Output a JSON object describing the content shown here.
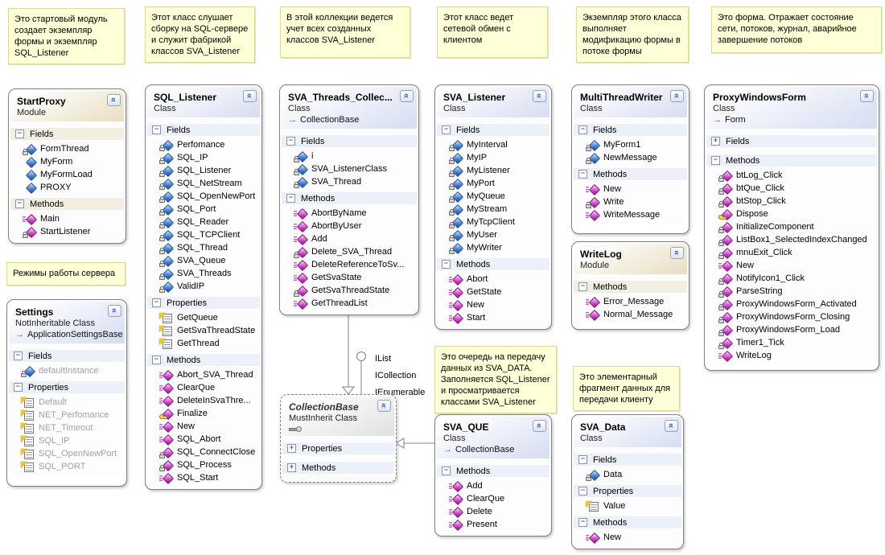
{
  "diagram": {
    "comments": [
      {
        "text": "Это стартовый модуль создает экземпляр формы и экземпляр SQL_Listener"
      },
      {
        "text": "Этот класс слушает сборку на SQL-сервере и служит фабрикой классов SVA_Listener"
      },
      {
        "text": "В этой коллекции ведется учет всех созданных классов SVA_Listener"
      },
      {
        "text": "Этот класс ведет сетевой обмен с клиентом"
      },
      {
        "text": "Экземпляр этого класса выполняет модификацию формы в потоке формы"
      },
      {
        "text": "Это форма. Отражает состояние сети, потоков, журнал, аварийное завершение потоков"
      },
      {
        "text": "Режимы работы сервера"
      },
      {
        "text": "Это очередь на передачу данных из SVA_DATA. Заполняется SQL_Listener и просматривается классами SVA_Listener"
      },
      {
        "text": "Это элементарный фрагмент данных для передачи клиенту"
      }
    ],
    "interfaces": [
      "IList",
      "ICollection",
      "IEnumerable"
    ],
    "classes": [
      {
        "id": "StartProxy",
        "title": "StartProxy",
        "kind": "Module",
        "variant": "module",
        "sections": [
          {
            "label": "Fields",
            "collapsed": false,
            "members": [
              {
                "label": "FormThread",
                "icon": "field-private"
              },
              {
                "label": "MyForm",
                "icon": "field-public"
              },
              {
                "label": "MyFormLoad",
                "icon": "field-public"
              },
              {
                "label": "PROXY",
                "icon": "field-public"
              }
            ]
          },
          {
            "label": "Methods",
            "collapsed": false,
            "members": [
              {
                "label": "Main",
                "icon": "method-public"
              },
              {
                "label": "StartListener",
                "icon": "method-private"
              }
            ]
          }
        ]
      },
      {
        "id": "Settings",
        "title": "Settings",
        "kind": "NotInheritable Class",
        "variant": "class",
        "base": "ApplicationSettingsBase",
        "sections": [
          {
            "label": "Fields",
            "collapsed": false,
            "members": [
              {
                "label": "defaultInstance",
                "icon": "field-private",
                "grey": true
              }
            ]
          },
          {
            "label": "Properties",
            "collapsed": false,
            "members": [
              {
                "label": "Default",
                "icon": "property",
                "grey": true
              },
              {
                "label": "NET_Perfomance",
                "icon": "property",
                "grey": true
              },
              {
                "label": "NET_Timeout",
                "icon": "property",
                "grey": true
              },
              {
                "label": "SQL_IP",
                "icon": "property",
                "grey": true
              },
              {
                "label": "SQL_OpenNewPort",
                "icon": "property",
                "grey": true
              },
              {
                "label": "SQL_PORT",
                "icon": "property",
                "grey": true
              }
            ]
          }
        ]
      },
      {
        "id": "SQL_Listener",
        "title": "SQL_Listener",
        "kind": "Class",
        "variant": "class",
        "sections": [
          {
            "label": "Fields",
            "collapsed": false,
            "members": [
              {
                "label": "Perfomance",
                "icon": "field-private"
              },
              {
                "label": "SQL_IP",
                "icon": "field-private"
              },
              {
                "label": "SQL_Listener",
                "icon": "field-private"
              },
              {
                "label": "SQL_NetStream",
                "icon": "field-private"
              },
              {
                "label": "SQL_OpenNewPort",
                "icon": "field-private"
              },
              {
                "label": "SQL_Port",
                "icon": "field-private"
              },
              {
                "label": "SQL_Reader",
                "icon": "field-private"
              },
              {
                "label": "SQL_TCPClient",
                "icon": "field-private"
              },
              {
                "label": "SQL_Thread",
                "icon": "field-private"
              },
              {
                "label": "SVA_Queue",
                "icon": "field-private"
              },
              {
                "label": "SVA_Threads",
                "icon": "field-private"
              },
              {
                "label": "ValidIP",
                "icon": "field-private"
              }
            ]
          },
          {
            "label": "Properties",
            "collapsed": false,
            "members": [
              {
                "label": "GetQueue",
                "icon": "property"
              },
              {
                "label": "GetSvaThreadState",
                "icon": "property"
              },
              {
                "label": "GetThread",
                "icon": "property"
              }
            ]
          },
          {
            "label": "Methods",
            "collapsed": false,
            "members": [
              {
                "label": "Abort_SVA_Thread",
                "icon": "method-public"
              },
              {
                "label": "ClearQue",
                "icon": "method-public"
              },
              {
                "label": "DeleteInSvaThre...",
                "icon": "method-public"
              },
              {
                "label": "Finalize",
                "icon": "method-protected"
              },
              {
                "label": "New",
                "icon": "method-public"
              },
              {
                "label": "SQL_Abort",
                "icon": "method-public"
              },
              {
                "label": "SQL_ConnectClose",
                "icon": "method-private"
              },
              {
                "label": "SQL_Process",
                "icon": "method-private"
              },
              {
                "label": "SQL_Start",
                "icon": "method-public"
              }
            ]
          }
        ]
      },
      {
        "id": "SVA_Threads_Collection",
        "title": "SVA_Threads_Collec...",
        "kind": "Class",
        "variant": "class",
        "base": "CollectionBase",
        "sections": [
          {
            "label": "Fields",
            "collapsed": false,
            "members": [
              {
                "label": "i",
                "icon": "field-private"
              },
              {
                "label": "SVA_ListenerClass",
                "icon": "field-private"
              },
              {
                "label": "SVA_Thread",
                "icon": "field-private"
              }
            ]
          },
          {
            "label": "Methods",
            "collapsed": false,
            "members": [
              {
                "label": "AbortByName",
                "icon": "method-public"
              },
              {
                "label": "AbortByUser",
                "icon": "method-public"
              },
              {
                "label": "Add",
                "icon": "method-public"
              },
              {
                "label": "Delete_SVA_Thread",
                "icon": "method-private"
              },
              {
                "label": "DeleteReferenceToSv...",
                "icon": "method-public"
              },
              {
                "label": "GetSvaState",
                "icon": "method-public"
              },
              {
                "label": "GetSvaThreadState",
                "icon": "method-private"
              },
              {
                "label": "GetThreadList",
                "icon": "method-public"
              }
            ]
          }
        ]
      },
      {
        "id": "CollectionBase",
        "title": "CollectionBase",
        "kind": "MustInherit Class",
        "variant": "abstract",
        "lollipop": true,
        "sections": [
          {
            "label": "Properties",
            "collapsed": true,
            "members": []
          },
          {
            "label": "Methods",
            "collapsed": true,
            "members": []
          }
        ]
      },
      {
        "id": "SVA_Listener",
        "title": "SVA_Listener",
        "kind": "Class",
        "variant": "class",
        "sections": [
          {
            "label": "Fields",
            "collapsed": false,
            "members": [
              {
                "label": "MyInterval",
                "icon": "field-private"
              },
              {
                "label": "MyIP",
                "icon": "field-private"
              },
              {
                "label": "MyListener",
                "icon": "field-private"
              },
              {
                "label": "MyPort",
                "icon": "field-private"
              },
              {
                "label": "MyQueue",
                "icon": "field-private"
              },
              {
                "label": "MyStream",
                "icon": "field-private"
              },
              {
                "label": "MyTcpClient",
                "icon": "field-private"
              },
              {
                "label": "MyUser",
                "icon": "field-private"
              },
              {
                "label": "MyWriter",
                "icon": "field-private"
              }
            ]
          },
          {
            "label": "Methods",
            "collapsed": false,
            "members": [
              {
                "label": "Abort",
                "icon": "method-public"
              },
              {
                "label": "GetState",
                "icon": "method-public"
              },
              {
                "label": "New",
                "icon": "method-public"
              },
              {
                "label": "Start",
                "icon": "method-public"
              }
            ]
          }
        ]
      },
      {
        "id": "SVA_QUE",
        "title": "SVA_QUE",
        "kind": "Class",
        "variant": "class",
        "base": "CollectionBase",
        "sections": [
          {
            "label": "Methods",
            "collapsed": false,
            "members": [
              {
                "label": "Add",
                "icon": "method-public"
              },
              {
                "label": "ClearQue",
                "icon": "method-public"
              },
              {
                "label": "Delete",
                "icon": "method-public"
              },
              {
                "label": "Present",
                "icon": "method-public"
              }
            ]
          }
        ]
      },
      {
        "id": "MultiThreadWriter",
        "title": "MultiThreadWriter",
        "kind": "Class",
        "variant": "class",
        "sections": [
          {
            "label": "Fields",
            "collapsed": false,
            "members": [
              {
                "label": "MyForm1",
                "icon": "field-private"
              },
              {
                "label": "NewMessage",
                "icon": "field-private"
              }
            ]
          },
          {
            "label": "Methods",
            "collapsed": false,
            "members": [
              {
                "label": "New",
                "icon": "method-public"
              },
              {
                "label": "Write",
                "icon": "method-private"
              },
              {
                "label": "WriteMessage",
                "icon": "method-public"
              }
            ]
          }
        ]
      },
      {
        "id": "WriteLog",
        "title": "WriteLog",
        "kind": "Module",
        "variant": "module",
        "sections": [
          {
            "label": "Methods",
            "collapsed": false,
            "members": [
              {
                "label": "Error_Message",
                "icon": "method-public"
              },
              {
                "label": "Normal_Message",
                "icon": "method-public"
              }
            ]
          }
        ]
      },
      {
        "id": "SVA_Data",
        "title": "SVA_Data",
        "kind": "Class",
        "variant": "class",
        "sections": [
          {
            "label": "Fields",
            "collapsed": false,
            "members": [
              {
                "label": "Data",
                "icon": "field-private"
              }
            ]
          },
          {
            "label": "Properties",
            "collapsed": false,
            "members": [
              {
                "label": "Value",
                "icon": "property"
              }
            ]
          },
          {
            "label": "Methods",
            "collapsed": false,
            "members": [
              {
                "label": "New",
                "icon": "method-public"
              }
            ]
          }
        ]
      },
      {
        "id": "ProxyWindowsForm",
        "title": "ProxyWindowsForm",
        "kind": "Class",
        "variant": "class",
        "base": "Form",
        "sections": [
          {
            "label": "Fields",
            "collapsed": true,
            "members": []
          },
          {
            "label": "Methods",
            "collapsed": false,
            "members": [
              {
                "label": "btLog_Click",
                "icon": "method-private"
              },
              {
                "label": "btQue_Click",
                "icon": "method-private"
              },
              {
                "label": "btStop_Click",
                "icon": "method-private"
              },
              {
                "label": "Dispose",
                "icon": "method-protected"
              },
              {
                "label": "InitializeComponent",
                "icon": "method-private"
              },
              {
                "label": "ListBox1_SelectedIndexChanged",
                "icon": "method-private"
              },
              {
                "label": "mnuExit_Click",
                "icon": "method-private"
              },
              {
                "label": "New",
                "icon": "method-public"
              },
              {
                "label": "NotifyIcon1_Click",
                "icon": "method-private"
              },
              {
                "label": "ParseString",
                "icon": "method-private"
              },
              {
                "label": "ProxyWindowsForm_Activated",
                "icon": "method-private"
              },
              {
                "label": "ProxyWindowsForm_Closing",
                "icon": "method-private"
              },
              {
                "label": "ProxyWindowsForm_Load",
                "icon": "method-private"
              },
              {
                "label": "Timer1_Tick",
                "icon": "method-private"
              },
              {
                "label": "WriteLog",
                "icon": "method-public"
              }
            ]
          }
        ]
      }
    ],
    "colors": {
      "note_bg": "#FFFFD8",
      "note_border": "#D9D99B",
      "class_header": "#D8DFF2",
      "module_header": "#E9E0C4",
      "field_icon": "#4A85D8",
      "method_icon": "#C23DBA",
      "chevron_blue": "#2F55C0",
      "connector_grey": "#808080"
    }
  }
}
